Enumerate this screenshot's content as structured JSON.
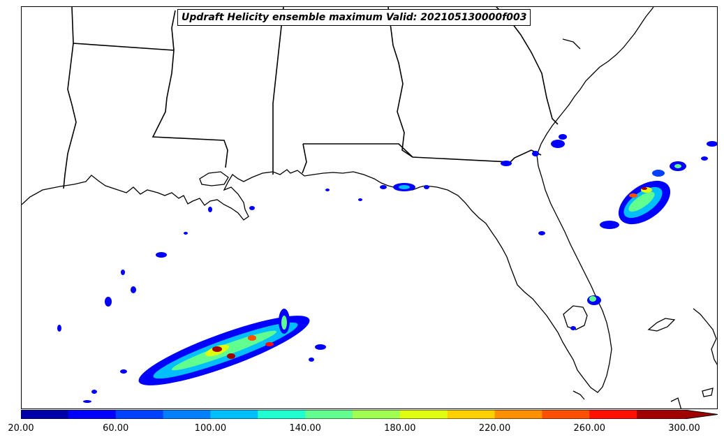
{
  "title": "Updraft Helicity ensemble maximum Valid: 202105130000f003",
  "colorbar": {
    "bins": [
      20,
      40,
      60,
      80,
      100,
      120,
      140,
      160,
      180,
      200,
      220,
      240,
      260,
      280,
      300
    ],
    "colors": [
      "#0000aa",
      "#0000ff",
      "#0040ff",
      "#0080ff",
      "#00bfff",
      "#20ffd0",
      "#60ff90",
      "#a0ff50",
      "#e0ff10",
      "#ffd000",
      "#ff9000",
      "#ff5000",
      "#ff1000",
      "#a00000"
    ],
    "extend_color": "#a00000",
    "tick_labels": [
      "20.00",
      "60.00",
      "100.00",
      "140.00",
      "180.00",
      "220.00",
      "260.00",
      "300.00"
    ]
  },
  "map": {
    "region": "Gulf of Mexico, Louisiana, Mississippi, Alabama, Georgia and Florida",
    "features": [
      "coastline",
      "state-borders",
      "updraft-helicity-contours"
    ]
  }
}
